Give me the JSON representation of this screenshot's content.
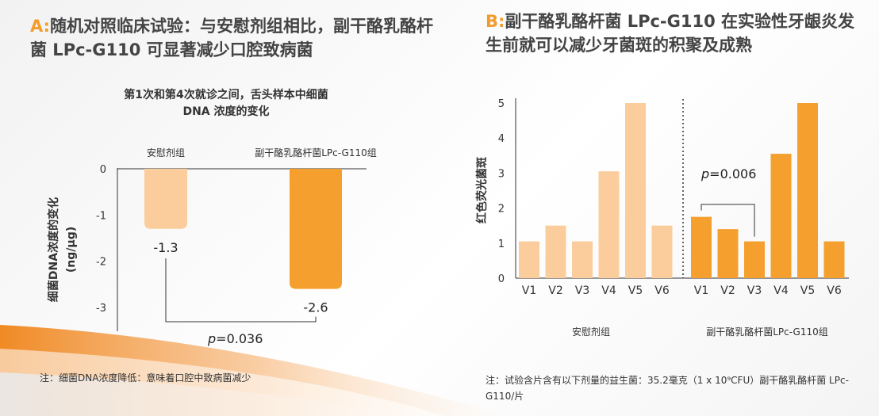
{
  "panel_a": {
    "tag": "A:",
    "title": "随机对照临床试验：与安慰剂组相比，副干酪乳酪杆菌 LPc-G110 可显著减少口腔致病菌",
    "note": "注：细菌DNA浓度降低：意味着口腔中致病菌减少"
  },
  "panel_b": {
    "tag": "B:",
    "title": "副干酪乳酪杆菌 LPc-G110 在实验性牙龈炎发生前就可以减少牙菌斑的积聚及成熟",
    "note": "注：试验含片含有以下剂量的益生菌：35.2毫克（1 x 10⁹CFU）副干酪乳酪杆菌 LPc-G110/片"
  },
  "colors": {
    "accent": "#f39c2b",
    "light": "#fbcd9c",
    "dark": "#f5a02e",
    "grid": "#333333"
  },
  "chart_data": [
    {
      "type": "bar",
      "title": "第1次和第4次就诊之间，舌头样本中细菌 DNA 浓度的变化",
      "xlabel": "",
      "ylabel": "细菌DNA浓度的变化",
      "yunit": "(ng/µg)",
      "ylim": [
        -3.5,
        0
      ],
      "yticks": [
        0,
        -1,
        -2,
        -3
      ],
      "categories": [
        "安慰剂组",
        "副干酪乳酪杆菌LPc-G110组"
      ],
      "values": [
        -1.3,
        -2.6
      ],
      "value_labels": [
        "-1.3",
        "-2.6"
      ],
      "annotation": {
        "p_symbol": "p",
        "p_text": "=0.036"
      }
    },
    {
      "type": "bar",
      "title": "",
      "xlabel": "",
      "ylabel": "红色荧光菌斑",
      "ylim": [
        0,
        5
      ],
      "yticks": [
        0,
        1,
        2,
        3,
        4,
        5
      ],
      "categories": [
        "V1",
        "V2",
        "V3",
        "V4",
        "V5",
        "V6"
      ],
      "series": [
        {
          "name": "安慰剂组",
          "values": [
            1.05,
            1.5,
            1.05,
            3.05,
            5.0,
            1.5
          ]
        },
        {
          "name": "副干酪乳酪杆菌LPc-G110组",
          "values": [
            1.75,
            1.4,
            1.05,
            3.55,
            5.0,
            1.05
          ]
        }
      ],
      "annotation": {
        "p_symbol": "p",
        "p_text": "=0.006"
      }
    }
  ]
}
